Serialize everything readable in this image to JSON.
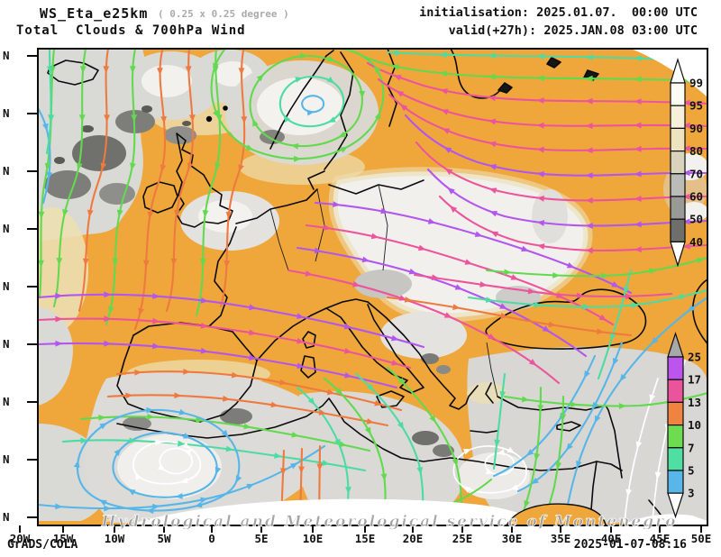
{
  "header": {
    "model": "WS_Eta_e25km",
    "resolution": "( 0.25 x 0.25 degree )",
    "product": "Total  Clouds & 700hPa Wind",
    "init_line": "initialisation: 2025.01.07.  00:00 UTC",
    "valid_line": "valid(+27h): 2025.JAN.08 03:00 UTC"
  },
  "axes": {
    "lon_labels": [
      "20W",
      "15W",
      "10W",
      "5W",
      "0",
      "5E",
      "10E",
      "15E",
      "20E",
      "25E",
      "30E",
      "35E",
      "40E",
      "45E",
      "50E"
    ],
    "lat_labels": [
      "N",
      "N",
      "N",
      "N",
      "N",
      "N",
      "N",
      "N",
      "N"
    ]
  },
  "colorbars": {
    "cloud": {
      "name": "total-cloud-cover-percent",
      "labels": [
        "99",
        "95",
        "90",
        "80",
        "70",
        "60",
        "50",
        "40"
      ],
      "colors": [
        "#fdfcf4",
        "#f6f0da",
        "#eee3bf",
        "#d9d3bd",
        "#bbbbb7",
        "#999995",
        "#6e6e6a"
      ],
      "arrow_top": "#ffffff",
      "arrow_bottom": "#ffffff"
    },
    "wind": {
      "name": "wind-speed-m-s",
      "labels": [
        "25",
        "17",
        "13",
        "10",
        "7",
        "5",
        "3"
      ],
      "colors": [
        "#bb55ee",
        "#ea549b",
        "#ee8440",
        "#6edc50",
        "#50dfa2",
        "#58b6e8"
      ],
      "arrow_top": "#a8a8a8",
      "arrow_bottom": "#ffffff"
    }
  },
  "map_colors": {
    "clear_sky": "#efa63b",
    "cloud_light": "#d9d9d6",
    "cloud_white": "#f1f0ed",
    "cloud_dark": "#70706c",
    "cloud_fringe": "#ecdfb2"
  },
  "watermark": "Hydrological and Meteorological service of Montenegro",
  "footer": {
    "engine": "GrADS/COLA",
    "timestamp": "2025-01-07-08:16"
  }
}
